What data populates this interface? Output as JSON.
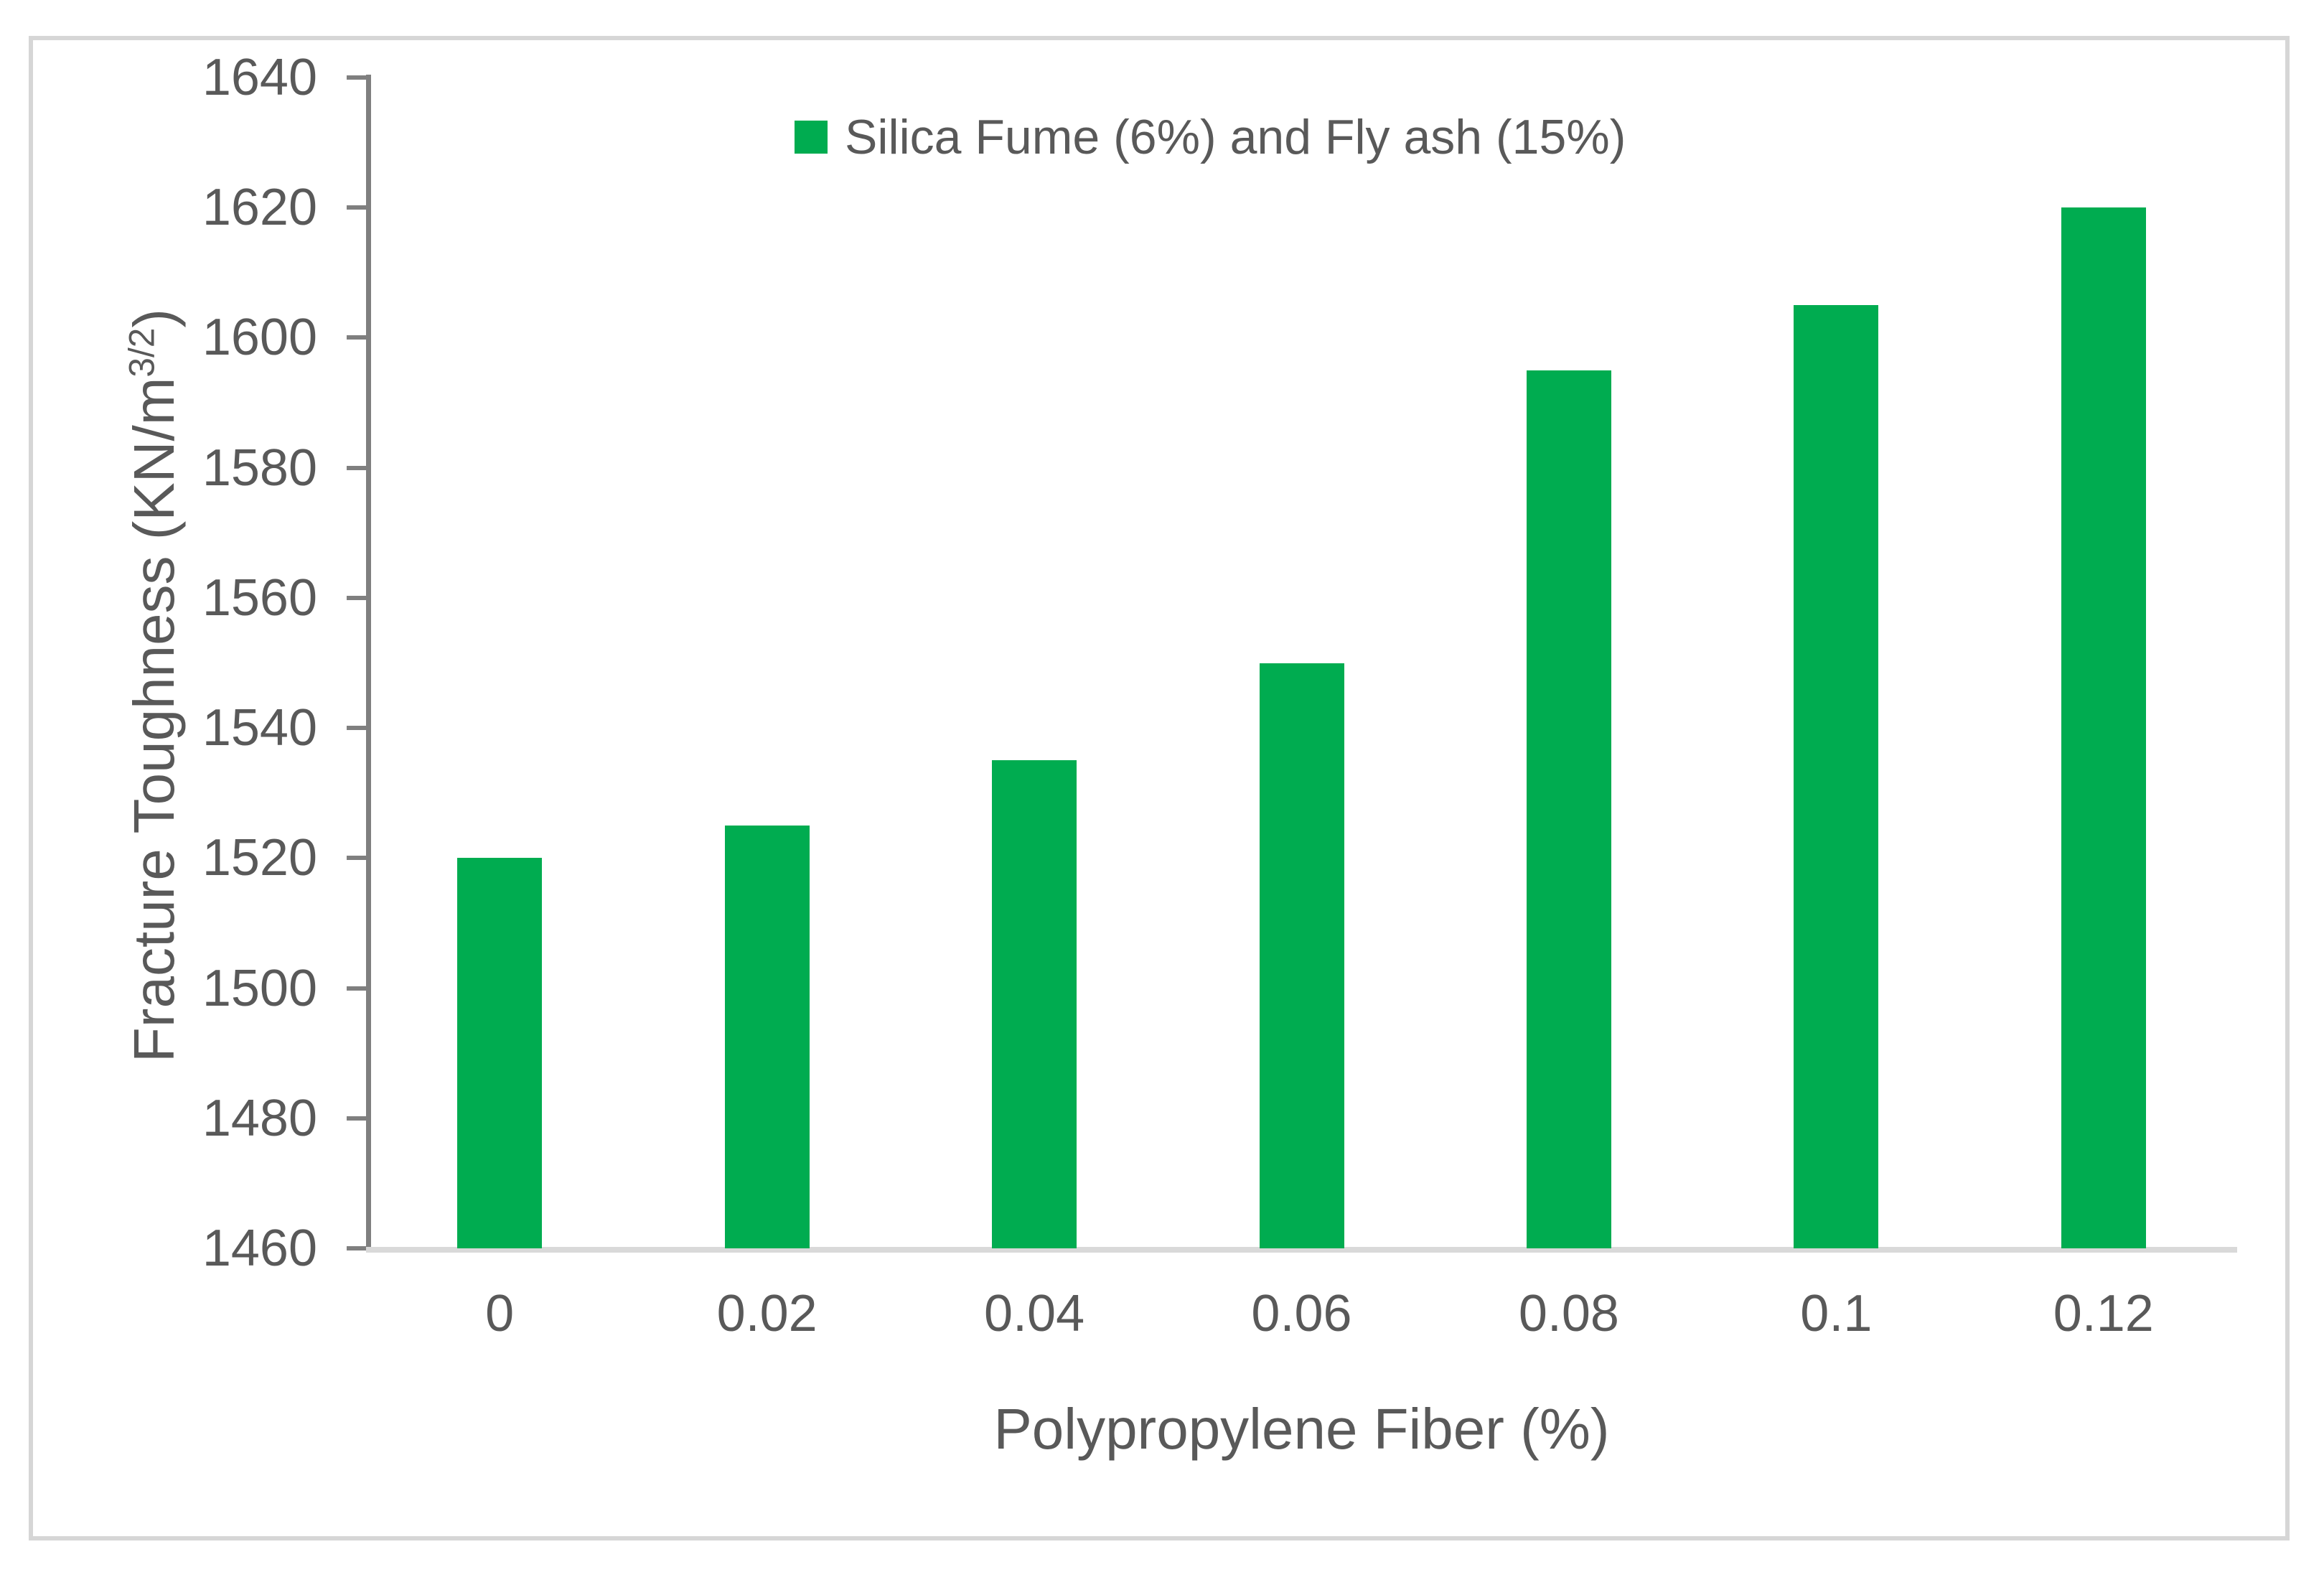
{
  "chart_data": {
    "type": "bar",
    "title": "",
    "categories": [
      "0",
      "0.02",
      "0.04",
      "0.06",
      "0.08",
      "0.1",
      "0.12"
    ],
    "series": [
      {
        "name": "Silica Fume (6%) and Fly ash (15%)",
        "values": [
          1520,
          1525,
          1535,
          1550,
          1595,
          1605,
          1620
        ]
      }
    ],
    "xlabel": "Polypropylene Fiber (%)",
    "ylabel_parts": {
      "prefix": "Fracture Toughness (KN/m",
      "superscript": "3/2",
      "suffix": ")"
    },
    "ylim": [
      1460,
      1640
    ],
    "ytick_step": 20,
    "ytick_labels": [
      "1460",
      "1480",
      "1500",
      "1520",
      "1540",
      "1560",
      "1580",
      "1600",
      "1620",
      "1640"
    ],
    "grid": "off",
    "legend_position": "top-center",
    "colors": {
      "bar_fill": "#00ac50",
      "text": "#595959",
      "y_axis_line": "#7f7f7f",
      "x_axis_line": "#d9d9d9",
      "chart_border": "#d6d6d6"
    }
  }
}
